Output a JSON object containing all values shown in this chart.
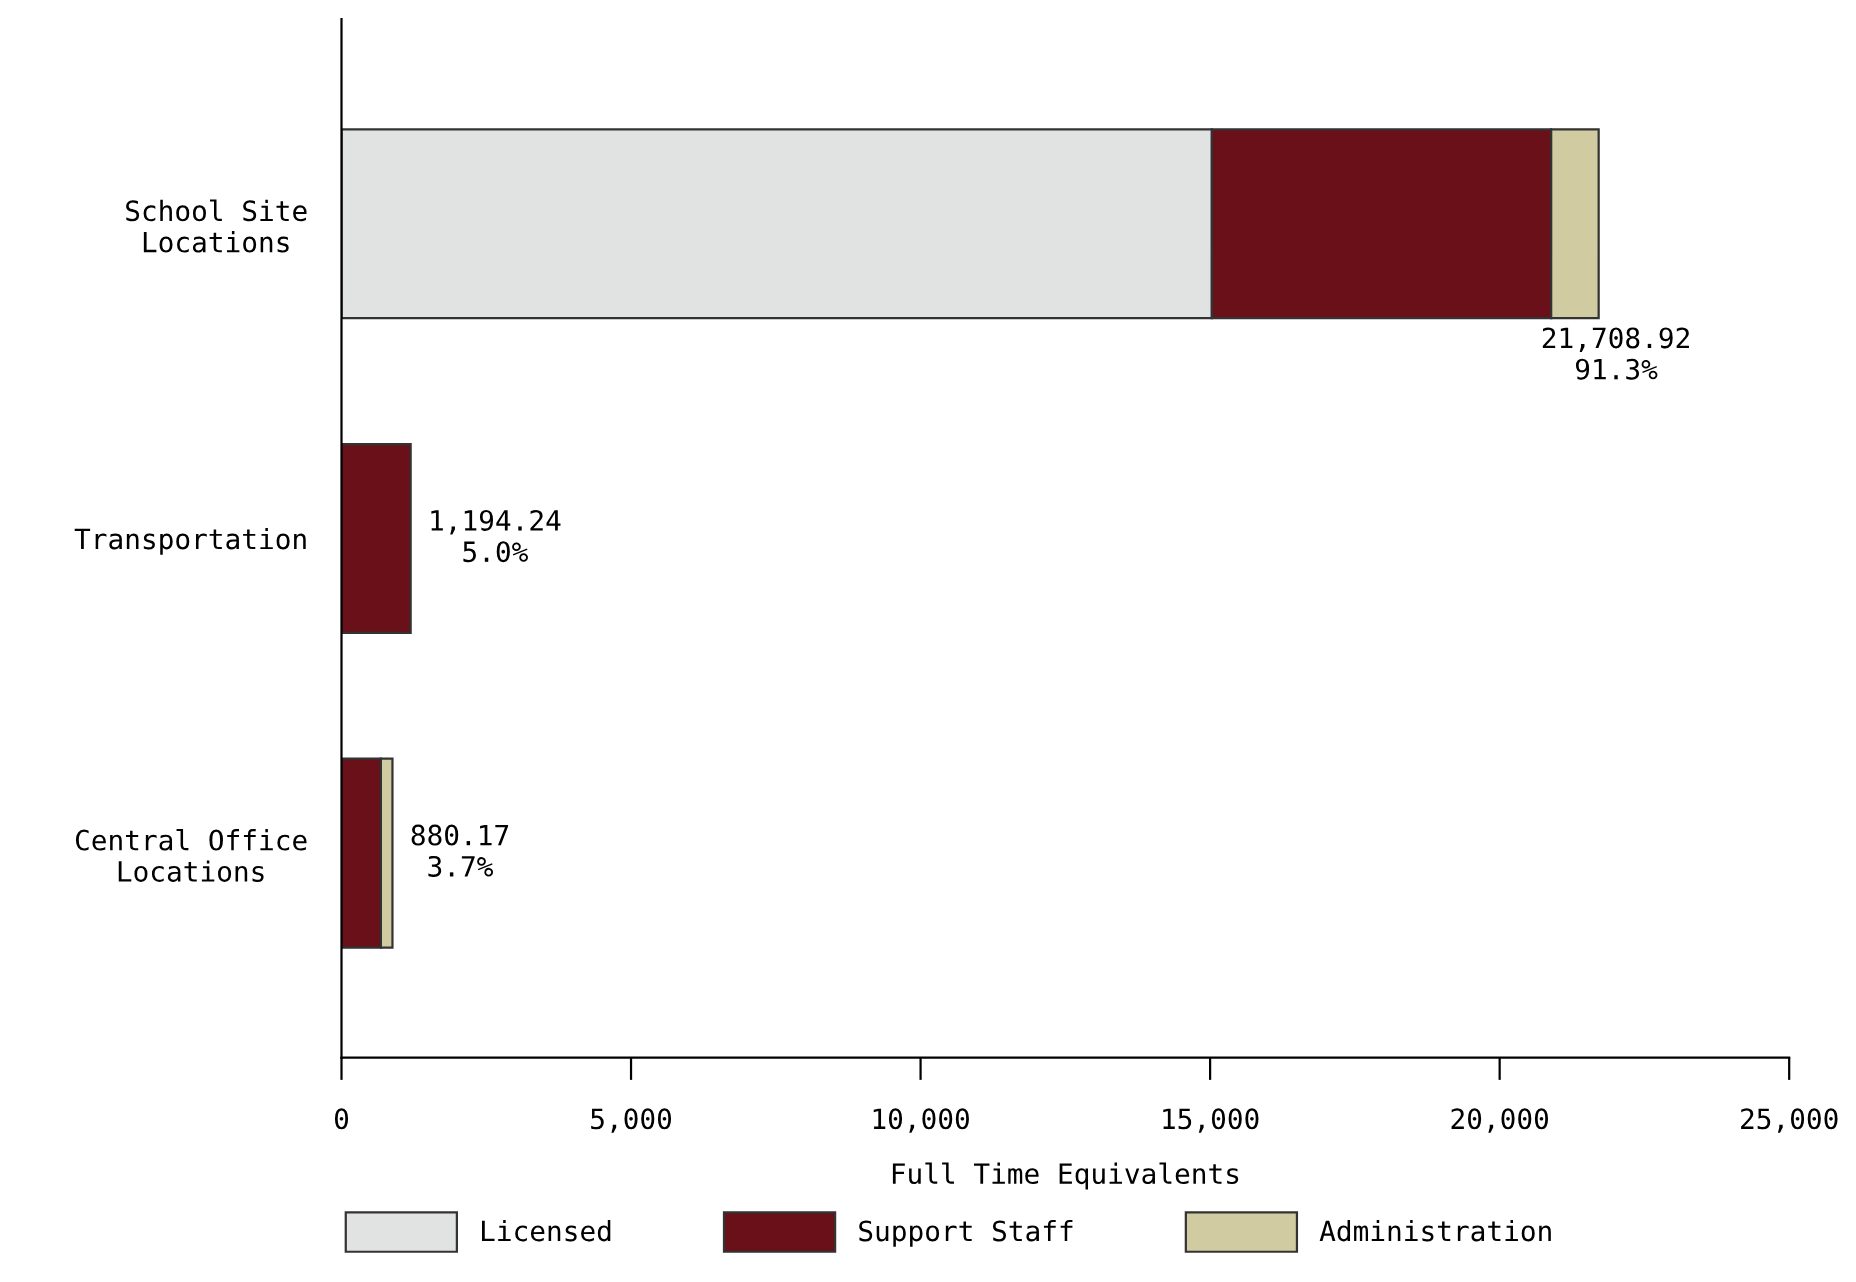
{
  "chart_data": {
    "type": "bar",
    "orientation": "horizontal",
    "stacked": true,
    "xlabel": "Full Time Equivalents",
    "categories": [
      "School Site\nLocations",
      "Transportation",
      "Central Office\nLocations"
    ],
    "series": [
      {
        "name": "Licensed",
        "color": "#e1e3e2",
        "values": [
          15030,
          0,
          0
        ]
      },
      {
        "name": "Support Staff",
        "color": "#6a1018",
        "values": [
          5860,
          1194.24,
          680
        ]
      },
      {
        "name": "Administration",
        "color": "#d0cba1",
        "values": [
          820,
          0,
          200
        ]
      }
    ],
    "totals": [
      "21,708.92\n91.3%",
      "1,194.24\n5.0%",
      "880.17\n3.7%"
    ],
    "xlim": [
      0,
      25000
    ],
    "xticks": [
      {
        "value": 0,
        "label": "0"
      },
      {
        "value": 5000,
        "label": "5,000"
      },
      {
        "value": 10000,
        "label": "10,000"
      },
      {
        "value": 15000,
        "label": "15,000"
      },
      {
        "value": 20000,
        "label": "20,000"
      },
      {
        "value": 25000,
        "label": "25,000"
      }
    ],
    "grid": false,
    "legend": "bottom"
  }
}
